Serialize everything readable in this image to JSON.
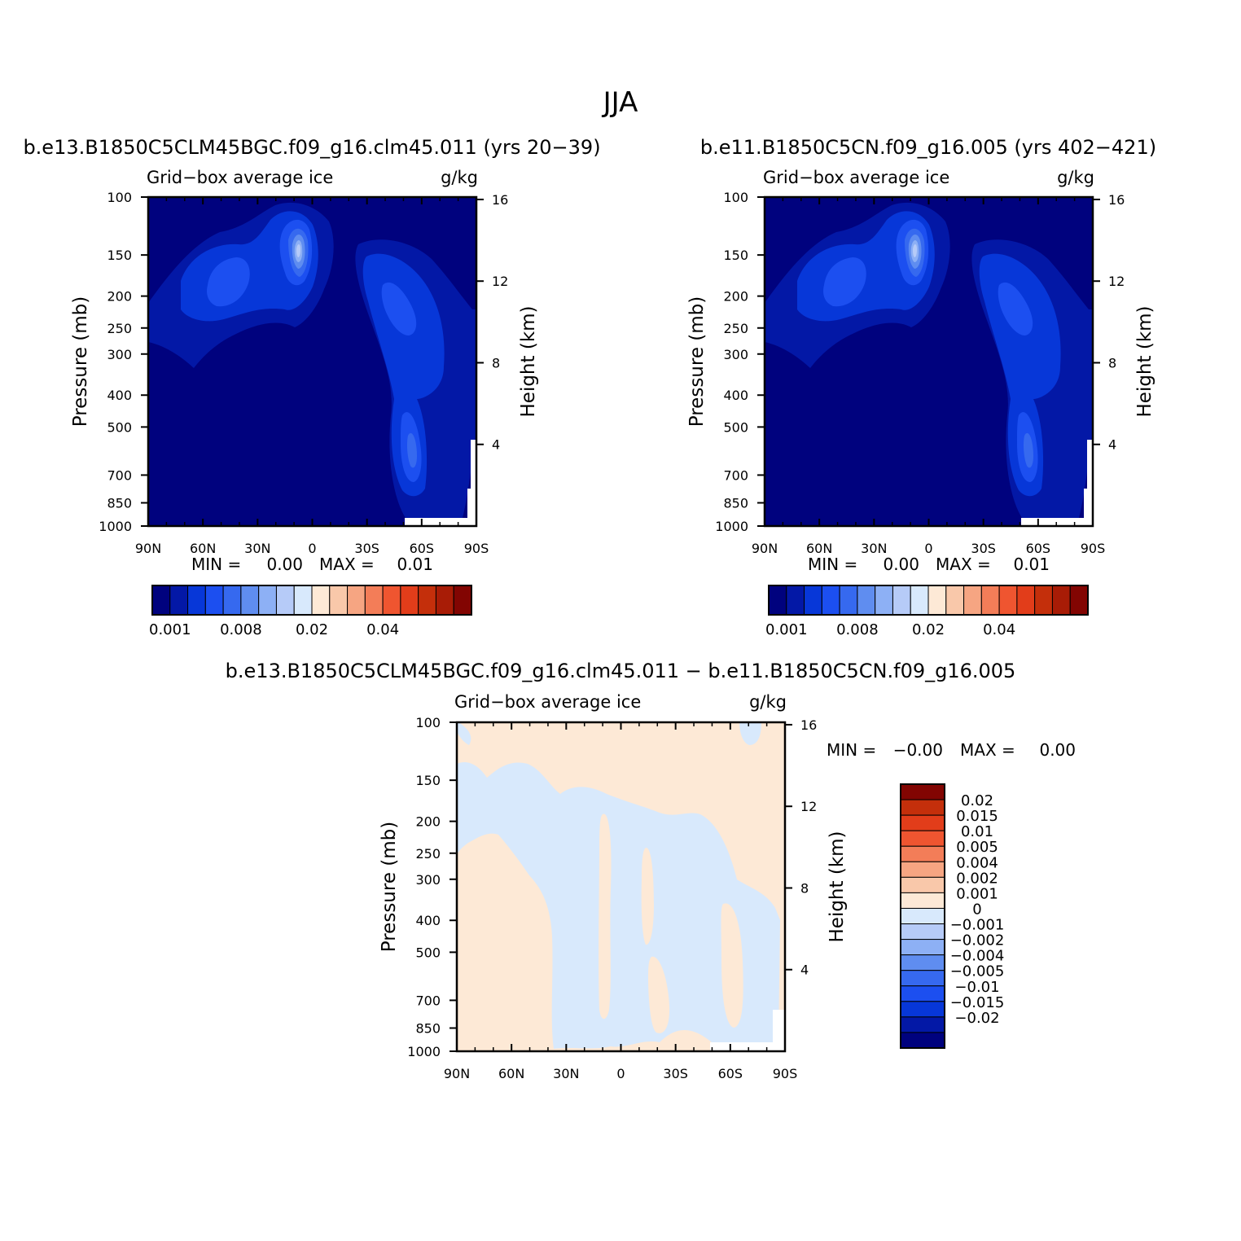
{
  "figure_title": "JJA",
  "colors": {
    "seq": [
      "#00027e",
      "#0318a6",
      "#0737d8",
      "#1c4ff0",
      "#3669ef",
      "#5f8df0",
      "#8db0f5",
      "#b6cbf8",
      "#d8e9fc",
      "#fde9d6",
      "#f9c8aa",
      "#f6a582",
      "#f37d58",
      "#ef5530",
      "#e23d1a",
      "#c42f0b",
      "#a81c06",
      "#820502"
    ],
    "diff": [
      "#00027e",
      "#0318a6",
      "#0737d8",
      "#1c4ff0",
      "#3669ef",
      "#5f8df0",
      "#8db0f5",
      "#b6cbf8",
      "#d8e9fc",
      "#fde9d6",
      "#f9c8aa",
      "#f6a582",
      "#f37d58",
      "#ef5530",
      "#e23d1a",
      "#c42f0b",
      "#820502"
    ]
  },
  "chart_data": [
    {
      "type": "heatmap",
      "title": "b.e13.B1850C5CLM45BGC.f09_g16.clm45.011 (yrs 20−39)",
      "left_label": "Grid−box average ice",
      "right_label": "g/kg",
      "xlabel": "",
      "ylabel": "Pressure (mb)",
      "y2label": "Height (km)",
      "x_ticks": [
        "90N",
        "60N",
        "30N",
        "0",
        "30S",
        "60S",
        "90S"
      ],
      "y_ticks": [
        "100",
        "150",
        "200",
        "250",
        "300",
        "400",
        "500",
        "700",
        "850",
        "1000"
      ],
      "y2_ticks": [
        "16",
        "12",
        "8",
        "4"
      ],
      "xlim": [
        90,
        -90
      ],
      "ylim": [
        1000,
        100
      ],
      "y_scale": "log",
      "stats": {
        "min_label": "MIN =",
        "min": "0.00",
        "max_label": "MAX =",
        "max": "0.01"
      },
      "colorbar": {
        "orientation": "horizontal",
        "labels": [
          "0.001",
          "0.008",
          "0.02",
          "0.04"
        ]
      }
    },
    {
      "type": "heatmap",
      "title": "b.e11.B1850C5CN.f09_g16.005 (yrs 402−421)",
      "left_label": "Grid−box average ice",
      "right_label": "g/kg",
      "xlabel": "",
      "ylabel": "Pressure (mb)",
      "y2label": "Height (km)",
      "x_ticks": [
        "90N",
        "60N",
        "30N",
        "0",
        "30S",
        "60S",
        "90S"
      ],
      "y_ticks": [
        "100",
        "150",
        "200",
        "250",
        "300",
        "400",
        "500",
        "700",
        "850",
        "1000"
      ],
      "y2_ticks": [
        "16",
        "12",
        "8",
        "4"
      ],
      "xlim": [
        90,
        -90
      ],
      "ylim": [
        1000,
        100
      ],
      "y_scale": "log",
      "stats": {
        "min_label": "MIN =",
        "min": "0.00",
        "max_label": "MAX =",
        "max": "0.01"
      },
      "colorbar": {
        "orientation": "horizontal",
        "labels": [
          "0.001",
          "0.008",
          "0.02",
          "0.04"
        ]
      }
    },
    {
      "type": "heatmap",
      "title": "b.e13.B1850C5CLM45BGC.f09_g16.clm45.011 − b.e11.B1850C5CN.f09_g16.005",
      "left_label": "Grid−box average ice",
      "right_label": "g/kg",
      "xlabel": "",
      "ylabel": "Pressure (mb)",
      "y2label": "Height (km)",
      "x_ticks": [
        "90N",
        "60N",
        "30N",
        "0",
        "30S",
        "60S",
        "90S"
      ],
      "y_ticks": [
        "100",
        "150",
        "200",
        "250",
        "300",
        "400",
        "500",
        "700",
        "850",
        "1000"
      ],
      "y2_ticks": [
        "16",
        "12",
        "8",
        "4"
      ],
      "xlim": [
        90,
        -90
      ],
      "ylim": [
        1000,
        100
      ],
      "y_scale": "log",
      "stats": {
        "min_label": "MIN =",
        "min": "−0.00",
        "max_label": "MAX =",
        "max": "0.00"
      },
      "colorbar": {
        "orientation": "vertical",
        "labels": [
          "0.02",
          "0.015",
          "0.01",
          "0.005",
          "0.004",
          "0.002",
          "0.001",
          "0",
          "−0.001",
          "−0.002",
          "−0.004",
          "−0.005",
          "−0.01",
          "−0.015",
          "−0.02"
        ]
      }
    }
  ]
}
